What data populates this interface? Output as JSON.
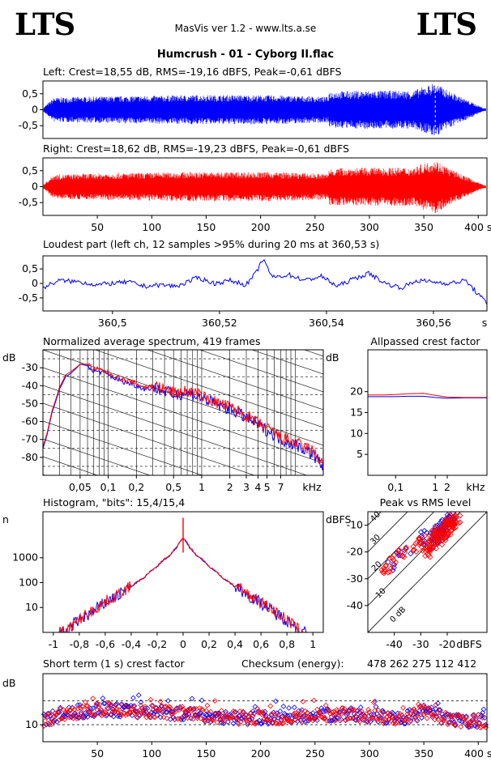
{
  "header": {
    "logo_left": "LTS",
    "logo_right": "LTS",
    "app": "MasVis ver 1.2 - www.lts.a.se",
    "track": "Humcrush - 01 - Cyborg II.flac"
  },
  "colors": {
    "left": "#0000ff",
    "right": "#ff0000",
    "frame": "#000000",
    "background": "#ffffff"
  },
  "chart_data": [
    {
      "id": "left_wave",
      "type": "line",
      "title": "Left: Crest=18,55 dB, RMS=-19,16 dBFS, Peak=-0,61 dBFS",
      "ylim": [
        -0.9,
        0.9
      ],
      "yticks": [
        -0.5,
        0,
        0.5
      ],
      "ytick_labels": [
        "-0,5",
        "0",
        "0,5"
      ],
      "xlim": [
        0,
        408
      ],
      "envelope": {
        "t": [
          0,
          10,
          30,
          60,
          100,
          140,
          180,
          220,
          262,
          263,
          300,
          340,
          360,
          375,
          390,
          405
        ],
        "amp": [
          0.05,
          0.38,
          0.4,
          0.42,
          0.44,
          0.46,
          0.46,
          0.45,
          0.4,
          0.58,
          0.6,
          0.6,
          0.85,
          0.55,
          0.3,
          0.05
        ]
      },
      "marker_s": 360.53,
      "series": [
        {
          "color": "#0000ff"
        }
      ]
    },
    {
      "id": "right_wave",
      "type": "line",
      "title": "Right: Crest=18,62 dB, RMS=-19,23 dBFS, Peak=-0,61 dBFS",
      "ylim": [
        -0.9,
        0.9
      ],
      "yticks": [
        -0.5,
        0,
        0.5
      ],
      "ytick_labels": [
        "-0,5",
        "0",
        "0,5"
      ],
      "xlim": [
        0,
        408
      ],
      "xticks": [
        50,
        100,
        150,
        200,
        250,
        300,
        350,
        400
      ],
      "xtick_labels": [
        "50",
        "100",
        "150",
        "200",
        "250",
        "300",
        "350",
        "400 s"
      ],
      "envelope": {
        "t": [
          0,
          10,
          30,
          60,
          100,
          140,
          180,
          220,
          262,
          263,
          300,
          340,
          360,
          375,
          390,
          405
        ],
        "amp": [
          0.05,
          0.38,
          0.4,
          0.42,
          0.44,
          0.46,
          0.46,
          0.45,
          0.4,
          0.58,
          0.6,
          0.6,
          0.85,
          0.55,
          0.3,
          0.05
        ]
      },
      "series": [
        {
          "color": "#ff0000"
        }
      ]
    },
    {
      "id": "loudest",
      "type": "line",
      "title": "Loudest part (left  ch, 12 samples >95% during 20 ms at 360,53 s)",
      "xlim": [
        360.487,
        360.57
      ],
      "xticks": [
        360.5,
        360.52,
        360.54,
        360.56
      ],
      "xtick_labels": [
        "360,5",
        "360,52",
        "360,54",
        "360,56"
      ],
      "x_unit": "s",
      "ylim": [
        -0.95,
        0.95
      ],
      "yticks": [
        -0.5,
        0,
        0.5
      ],
      "ytick_labels": [
        "-0,5",
        "0",
        "0,5"
      ],
      "x": [
        360.487,
        360.49,
        360.494,
        360.497,
        360.5,
        360.503,
        360.506,
        360.509,
        360.512,
        360.514,
        360.516,
        360.519,
        360.522,
        360.525,
        360.527,
        360.528,
        360.53,
        360.533,
        360.536,
        360.539,
        360.542,
        360.545,
        360.548,
        360.551,
        360.554,
        360.557,
        360.56,
        360.563,
        360.566,
        360.57
      ],
      "y": [
        -0.15,
        0.1,
        0.05,
        -0.05,
        0.0,
        0.05,
        -0.1,
        -0.05,
        -0.1,
        0.05,
        0.2,
        0.0,
        0.1,
        -0.05,
        0.4,
        0.85,
        0.2,
        0.3,
        0.1,
        0.25,
        -0.1,
        0.15,
        0.35,
        0.0,
        -0.15,
        0.1,
        0.05,
        0.0,
        0.1,
        -0.7
      ],
      "series": [
        {
          "color": "#0000ff"
        }
      ]
    },
    {
      "id": "spectrum",
      "type": "line",
      "title": "Normalized average spectrum, 419 frames",
      "ylabel": "dB",
      "x_unit": "kHz",
      "xscale": "log",
      "xlim": [
        0.02,
        20
      ],
      "ylim": [
        -90,
        -20
      ],
      "yticks": [
        -80,
        -70,
        -60,
        -50,
        -40,
        -30
      ],
      "ytick_labels": [
        "-80",
        "-70",
        "-60",
        "-50",
        "-40",
        "-30"
      ],
      "xticks": [
        0.05,
        0.1,
        0.2,
        0.5,
        1,
        2,
        3,
        4,
        5,
        7
      ],
      "xtick_labels": [
        "0,05",
        "0,1",
        "0,2",
        "0,5",
        "1",
        "2",
        "3",
        "4",
        "5",
        "7"
      ],
      "x": [
        0.02,
        0.022,
        0.025,
        0.03,
        0.035,
        0.04,
        0.05,
        0.06,
        0.07,
        0.08,
        0.1,
        0.12,
        0.15,
        0.2,
        0.25,
        0.3,
        0.4,
        0.5,
        0.7,
        1,
        1.5,
        2,
        3,
        4,
        5,
        7,
        10,
        15,
        20
      ],
      "series": [
        {
          "name": "",
          "color": "#0000ff",
          "y": [
            -75,
            -68,
            -55,
            -42,
            -35,
            -33,
            -28,
            -29,
            -32,
            -32,
            -34,
            -36,
            -38,
            -40,
            -42,
            -41,
            -43,
            -45,
            -44,
            -47,
            -51,
            -53,
            -58,
            -62,
            -65,
            -70,
            -73,
            -78,
            -85
          ]
        },
        {
          "name": "",
          "color": "#ff0000",
          "y": [
            -74,
            -67,
            -54,
            -41,
            -34,
            -32,
            -28,
            -28,
            -31,
            -31,
            -33,
            -35,
            -37,
            -39,
            -41,
            -40,
            -42,
            -44,
            -43,
            -46,
            -50,
            -52,
            -57,
            -61,
            -64,
            -69,
            -72,
            -76,
            -84
          ]
        }
      ]
    },
    {
      "id": "allpass",
      "type": "line",
      "title": "Allpassed crest factor",
      "ylabel": "dB",
      "x_unit": "kHz",
      "xscale": "log",
      "xlim": [
        0.02,
        20
      ],
      "ylim": [
        0,
        30
      ],
      "yticks": [
        5,
        10,
        15,
        20
      ],
      "ytick_labels": [
        "5",
        "10",
        "15",
        "20"
      ],
      "xticks": [
        0.1,
        1,
        2
      ],
      "xtick_labels": [
        "0,1",
        "1",
        "2"
      ],
      "x": [
        0.02,
        0.05,
        0.1,
        0.2,
        0.5,
        1,
        2,
        5,
        10,
        20
      ],
      "series": [
        {
          "name": "",
          "color": "#0000ff",
          "y": [
            18.8,
            18.8,
            18.8,
            18.9,
            18.9,
            18.6,
            18.4,
            18.5,
            18.5,
            18.5
          ]
        },
        {
          "name": "",
          "color": "#ff0000",
          "y": [
            19.2,
            19.2,
            19.3,
            19.5,
            19.6,
            19.1,
            18.7,
            18.6,
            18.6,
            18.6
          ]
        }
      ]
    },
    {
      "id": "histogram",
      "type": "line",
      "title": "Histogram, \"bits\": 15,4/15,4",
      "ylabel": "n",
      "yscale": "log",
      "ylim": [
        1,
        70000
      ],
      "yticks": [
        10,
        100,
        1000
      ],
      "ytick_labels": [
        "10",
        "100",
        "1000"
      ],
      "xlim": [
        -1.08,
        1.08
      ],
      "xticks": [
        -1,
        -0.8,
        -0.6,
        -0.4,
        -0.2,
        0,
        0.2,
        0.4,
        0.6,
        0.8,
        1
      ],
      "xtick_labels": [
        "-1",
        "-0,8",
        "-0,6",
        "-0,4",
        "-0,2",
        "0",
        "0,2",
        "0,4",
        "0,6",
        "0,8",
        "1"
      ],
      "x": [
        -0.98,
        -0.9,
        -0.8,
        -0.7,
        -0.6,
        -0.5,
        -0.4,
        -0.3,
        -0.2,
        -0.1,
        -0.05,
        0,
        0.05,
        0.1,
        0.2,
        0.3,
        0.4,
        0.5,
        0.6,
        0.7,
        0.8,
        0.9,
        0.98
      ],
      "series": [
        {
          "name": "",
          "color": "#0000ff",
          "y": [
            1,
            1,
            3,
            6,
            15,
            30,
            65,
            150,
            420,
            1200,
            2500,
            6000,
            2500,
            1200,
            420,
            150,
            65,
            30,
            15,
            6,
            3,
            1,
            1
          ]
        },
        {
          "name": "",
          "color": "#ff0000",
          "y": [
            1,
            1,
            3,
            7,
            16,
            32,
            68,
            155,
            430,
            1250,
            2600,
            6200,
            2600,
            1250,
            430,
            155,
            68,
            32,
            16,
            7,
            3,
            1,
            1
          ]
        }
      ]
    },
    {
      "id": "peak_rms",
      "type": "scatter",
      "title": "Peak vs RMS level",
      "ylabel": "dBFS",
      "x_unit": "dBFS",
      "xlim": [
        -50,
        -5
      ],
      "ylim": [
        -50,
        -5
      ],
      "xticks": [
        -40,
        -30,
        -20
      ],
      "xtick_labels": [
        "-40",
        "-30",
        "-20"
      ],
      "yticks": [
        -40,
        -30,
        -20,
        -10
      ],
      "ytick_labels": [
        "-40",
        "-30",
        "-20",
        "-10"
      ],
      "crest_lines_db": [
        0,
        10,
        20,
        30,
        40
      ],
      "crest_labels": [
        "0 dB",
        "10",
        "20",
        "30",
        "40"
      ],
      "series": [
        {
          "name": "",
          "color": "#0000ff",
          "x": [
            -42,
            -38,
            -35,
            -31,
            -28,
            -26,
            -24,
            -23,
            -22,
            -21,
            -20,
            -19,
            -18,
            -25,
            -27,
            -22,
            -20,
            -19,
            -21,
            -24
          ],
          "y": [
            -25,
            -21,
            -19,
            -16,
            -14,
            -13,
            -12,
            -11,
            -10,
            -9,
            -8,
            -8,
            -7,
            -15,
            -17,
            -13,
            -11,
            -10,
            -12,
            -14
          ]
        },
        {
          "name": "",
          "color": "#ff0000",
          "x": [
            -43,
            -40,
            -37,
            -33,
            -30,
            -29,
            -27,
            -25,
            -24,
            -23,
            -22,
            -21,
            -20,
            -19,
            -18,
            -17,
            -26,
            -24,
            -22,
            -20,
            -19,
            -18,
            -23,
            -21,
            -28,
            -25
          ],
          "y": [
            -26,
            -23,
            -20,
            -18,
            -16,
            -17,
            -15,
            -13,
            -14,
            -12,
            -11,
            -12,
            -10,
            -9,
            -8,
            -8,
            -18,
            -16,
            -14,
            -13,
            -11,
            -10,
            -15,
            -13,
            -20,
            -18
          ]
        }
      ]
    },
    {
      "id": "short_term",
      "type": "scatter",
      "title": "Short term (1 s) crest factor",
      "checksum_label": "Checksum (energy):",
      "checksum_value": "478 262 275 112 412",
      "ylabel": "dB",
      "xlim": [
        0,
        408
      ],
      "ylim": [
        5,
        25
      ],
      "yticks": [
        10
      ],
      "ytick_labels": [
        "10"
      ],
      "ref_lines": [
        10,
        17
      ],
      "xticks": [
        50,
        100,
        150,
        200,
        250,
        300,
        350,
        400
      ],
      "xtick_labels": [
        "50",
        "100",
        "150",
        "200",
        "250",
        "300",
        "350",
        "400 s"
      ],
      "trend": {
        "t": [
          0,
          20,
          40,
          60,
          80,
          100,
          120,
          140,
          160,
          180,
          200,
          220,
          240,
          260,
          280,
          300,
          320,
          340,
          350,
          360,
          380,
          408
        ],
        "db": [
          11,
          13.5,
          14,
          14.5,
          14,
          14,
          13.5,
          13,
          12.5,
          12,
          12,
          12,
          12.5,
          13,
          13,
          12.5,
          12,
          12.5,
          14,
          13,
          11,
          11
        ]
      },
      "series": [
        {
          "name": "",
          "color": "#0000ff"
        },
        {
          "name": "",
          "color": "#ff0000"
        }
      ]
    }
  ]
}
